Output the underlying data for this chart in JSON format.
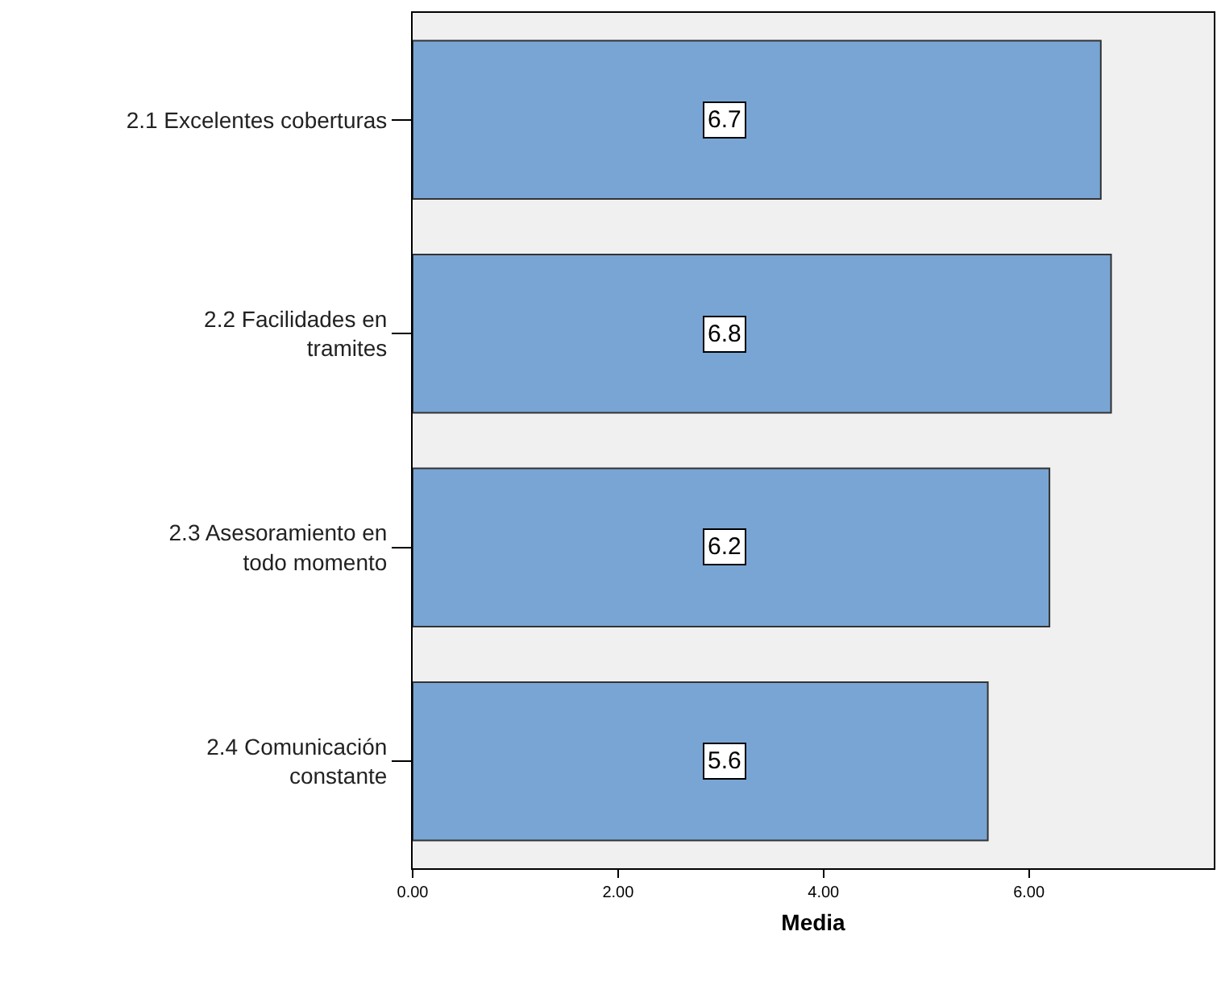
{
  "chart_data": {
    "type": "bar",
    "orientation": "horizontal",
    "xlabel": "Media",
    "categories": [
      "2.1 Excelentes coberturas",
      "2.2 Facilidades en\ntramites",
      "2.3 Asesoramiento en\ntodo momento",
      "2.4 Comunicación\nconstante"
    ],
    "values": [
      6.7,
      6.8,
      6.2,
      5.6
    ],
    "color": "#79a5d5",
    "value_labels": [
      "6.7",
      "6.8",
      "6.2",
      "5.6"
    ],
    "xlim": [
      0,
      7.8
    ],
    "xticks": [
      {
        "value": 0,
        "label": "0.00"
      },
      {
        "value": 2,
        "label": "2.00"
      },
      {
        "value": 4,
        "label": "4.00"
      },
      {
        "value": 6,
        "label": "6.00"
      }
    ],
    "grid": false
  }
}
